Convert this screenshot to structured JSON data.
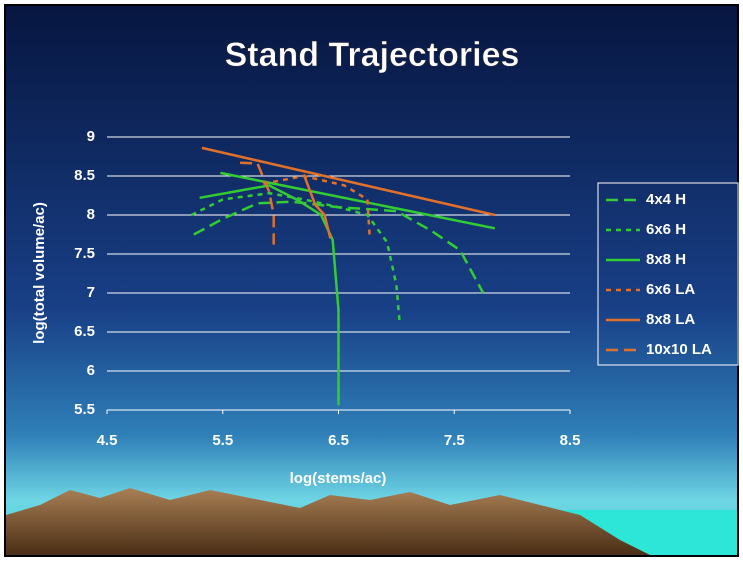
{
  "chart_data": {
    "type": "line",
    "title": "Stand Trajectories",
    "x_label": "log(stems/ac)",
    "y_label": "log(total volume/ac)",
    "xlim": [
      4.5,
      8.5
    ],
    "xticks": [
      4.5,
      5.5,
      6.5,
      7.5,
      8.5
    ],
    "ylim": [
      5.5,
      9
    ],
    "yticks": [
      5.5,
      6,
      6.5,
      7,
      7.5,
      8,
      8.5,
      9
    ],
    "grid": true,
    "legend": "right",
    "series": [
      {
        "name": "4x4 H",
        "color": "#33cc33",
        "line_style": "dashed",
        "x": [
          5.25,
          5.5,
          5.8,
          6.1,
          6.5,
          7.0,
          7.3,
          7.55,
          7.75
        ],
        "values": [
          7.75,
          7.95,
          8.15,
          8.17,
          8.1,
          8.05,
          7.8,
          7.55,
          7.0
        ]
      },
      {
        "name": "6x6 H",
        "color": "#33cc33",
        "line_style": "dotted",
        "x": [
          5.23,
          5.5,
          5.9,
          6.2,
          6.5,
          6.75,
          6.92,
          7.0,
          7.03
        ],
        "values": [
          8.0,
          8.2,
          8.28,
          8.2,
          8.1,
          8.0,
          7.65,
          7.1,
          6.6
        ]
      },
      {
        "name": "8x8 H",
        "color": "#33cc33",
        "line_style": "solid",
        "x": [
          5.3,
          5.6,
          5.9,
          6.15,
          6.35,
          6.45,
          6.5,
          6.5,
          null,
          5.48,
          7.85
        ],
        "values": [
          8.22,
          8.3,
          8.38,
          8.19,
          8.0,
          7.68,
          6.78,
          5.56,
          null,
          8.54,
          7.83
        ]
      },
      {
        "name": "6x6 LA",
        "color": "#e0702a",
        "line_style": "dotted",
        "x": [
          5.85,
          6.2,
          6.55,
          6.75,
          6.77
        ],
        "values": [
          8.4,
          8.5,
          8.38,
          8.2,
          7.7
        ]
      },
      {
        "name": "8x8 LA",
        "color": "#e0702a",
        "line_style": "solid",
        "x": [
          5.32,
          7.85,
          null,
          6.2,
          6.3,
          6.38,
          6.43
        ],
        "values": [
          8.86,
          8.0,
          null,
          8.52,
          8.13,
          8.0,
          7.7
        ]
      },
      {
        "name": "10x10 LA",
        "color": "#e0702a",
        "line_style": "dashed",
        "x": [
          5.65,
          5.8,
          5.9,
          5.94,
          5.94
        ],
        "values": [
          8.67,
          8.66,
          8.3,
          8.0,
          7.62
        ]
      }
    ]
  }
}
